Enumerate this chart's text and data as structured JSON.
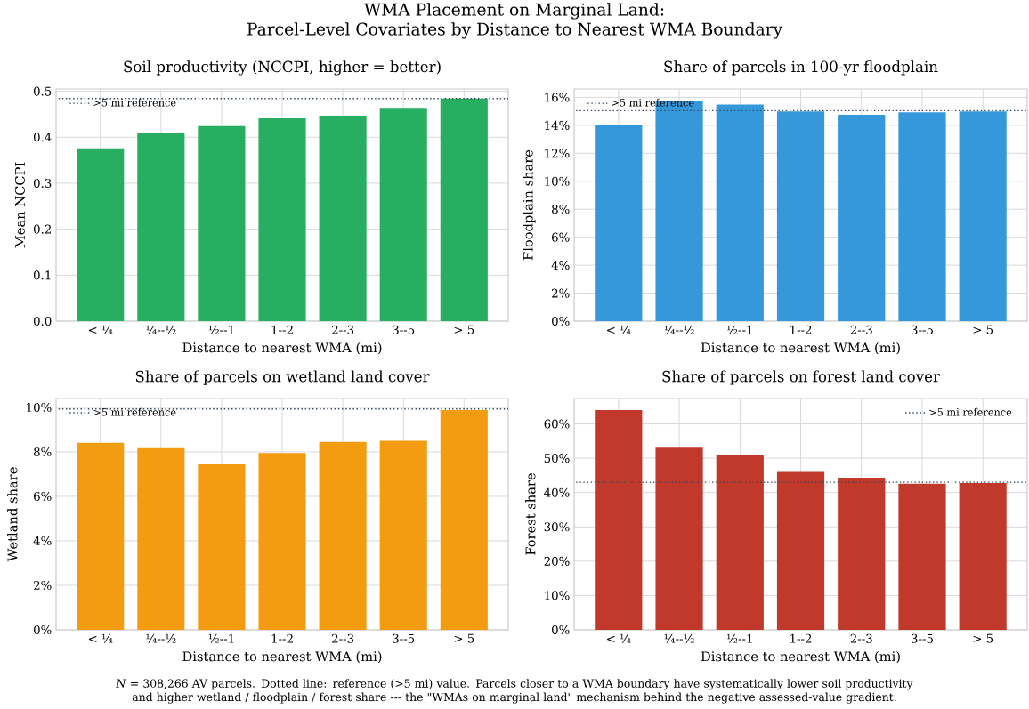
{
  "chart_data": [
    {
      "type": "other",
      "title": "WMA Placement on Marginal Land:",
      "subtitle": "Parcel-Level Covariates by Distance to Nearest WMA Boundary",
      "annotations": [
        "*N* = 308,266 AV parcels. Dotted line: reference (>5 mi) value. Parcels closer to a WMA boundary have systematically lower soil productivity and higher wetland / floodplain / forest share --- the \"WMAs on marginal land\" mechanism behind the negative assessed-value gradient."
      ]
    },
    {
      "type": "bar",
      "title": "Soil productivity (NCCPI, higher = better)",
      "xlabel": "Distance to nearest WMA (mi)",
      "ylabel": "Mean NCCPI",
      "categories": [
        "< ¼",
        "¼--½",
        "½--1",
        "1--2",
        "2--3",
        "3--5",
        "> 5"
      ],
      "values": [
        0.376,
        0.41,
        0.424,
        0.441,
        0.447,
        0.464,
        0.484
      ],
      "color": "#27ae60",
      "ylim": [
        0,
        0.505
      ],
      "yticks": [
        {
          "value": 0,
          "label": "0.0"
        },
        0.1,
        0.2,
        0.3,
        0.4,
        0.5
      ],
      "grid": true,
      "legend": "top left",
      "ref_lines": [
        {
          "axis": "y",
          "value": 0.484,
          "label": ">5 mi reference",
          "color": "#34495e",
          "line_style": "dotted"
        }
      ]
    },
    {
      "type": "bar",
      "title": "Share of parcels in 100-yr floodplain",
      "xlabel": "Distance to nearest WMA (mi)",
      "ylabel": "Floodplain share",
      "categories": [
        "< ¼",
        "¼--½",
        "½--1",
        "1--2",
        "2--3",
        "3--5",
        "> 5"
      ],
      "values": [
        14.0,
        15.77,
        15.49,
        15.0,
        14.76,
        14.93,
        15.0
      ],
      "color": "#3498db",
      "ylim": [
        0,
        16.6
      ],
      "yticks": [
        {
          "value": 0,
          "label": "0%"
        },
        {
          "value": 2,
          "label": "2%"
        },
        {
          "value": 4,
          "label": "4%"
        },
        {
          "value": 6,
          "label": "6%"
        },
        {
          "value": 8,
          "label": "8%"
        },
        {
          "value": 10,
          "label": "10%"
        },
        {
          "value": 12,
          "label": "12%"
        },
        {
          "value": 14,
          "label": "14%"
        },
        {
          "value": 16,
          "label": "16%"
        }
      ],
      "grid": true,
      "legend": "top left",
      "ref_lines": [
        {
          "axis": "y",
          "value": 15.05,
          "label": ">5 mi reference",
          "color": "#34495e",
          "line_style": "dotted"
        }
      ]
    },
    {
      "type": "bar",
      "title": "Share of parcels on wetland land cover",
      "xlabel": "Distance to nearest WMA (mi)",
      "ylabel": "Wetland share",
      "categories": [
        "< ¼",
        "¼--½",
        "½--1",
        "1--2",
        "2--3",
        "3--5",
        "> 5"
      ],
      "values": [
        8.41,
        8.17,
        7.44,
        7.95,
        8.45,
        8.5,
        9.88
      ],
      "color": "#f39c12",
      "ylim": [
        0,
        10.4
      ],
      "yticks": [
        {
          "value": 0,
          "label": "0%"
        },
        {
          "value": 2,
          "label": "2%"
        },
        {
          "value": 4,
          "label": "4%"
        },
        {
          "value": 6,
          "label": "6%"
        },
        {
          "value": 8,
          "label": "8%"
        },
        {
          "value": 10,
          "label": "10%"
        }
      ],
      "grid": true,
      "legend": "top left",
      "ref_lines": [
        {
          "axis": "y",
          "value": 9.93,
          "label": ">5 mi reference",
          "color": "#34495e",
          "line_style": "dotted"
        }
      ]
    },
    {
      "type": "bar",
      "title": "Share of parcels on forest land cover",
      "xlabel": "Distance to nearest WMA (mi)",
      "ylabel": "Forest share",
      "categories": [
        "< ¼",
        "¼--½",
        "½--1",
        "1--2",
        "2--3",
        "3--5",
        "> 5"
      ],
      "values": [
        64.0,
        53.1,
        51.0,
        46.0,
        44.3,
        42.6,
        42.8
      ],
      "color": "#c0392b",
      "ylim": [
        0,
        67.4
      ],
      "yticks": [
        {
          "value": 0,
          "label": "0%"
        },
        {
          "value": 10,
          "label": "10%"
        },
        {
          "value": 20,
          "label": "20%"
        },
        {
          "value": 30,
          "label": "30%"
        },
        {
          "value": 40,
          "label": "40%"
        },
        {
          "value": 50,
          "label": "50%"
        },
        {
          "value": 60,
          "label": "60%"
        }
      ],
      "grid": true,
      "legend": "top right",
      "ref_lines": [
        {
          "axis": "y",
          "value": 43.0,
          "label": ">5 mi reference",
          "color": "#34495e",
          "line_style": "dotted"
        }
      ]
    }
  ]
}
